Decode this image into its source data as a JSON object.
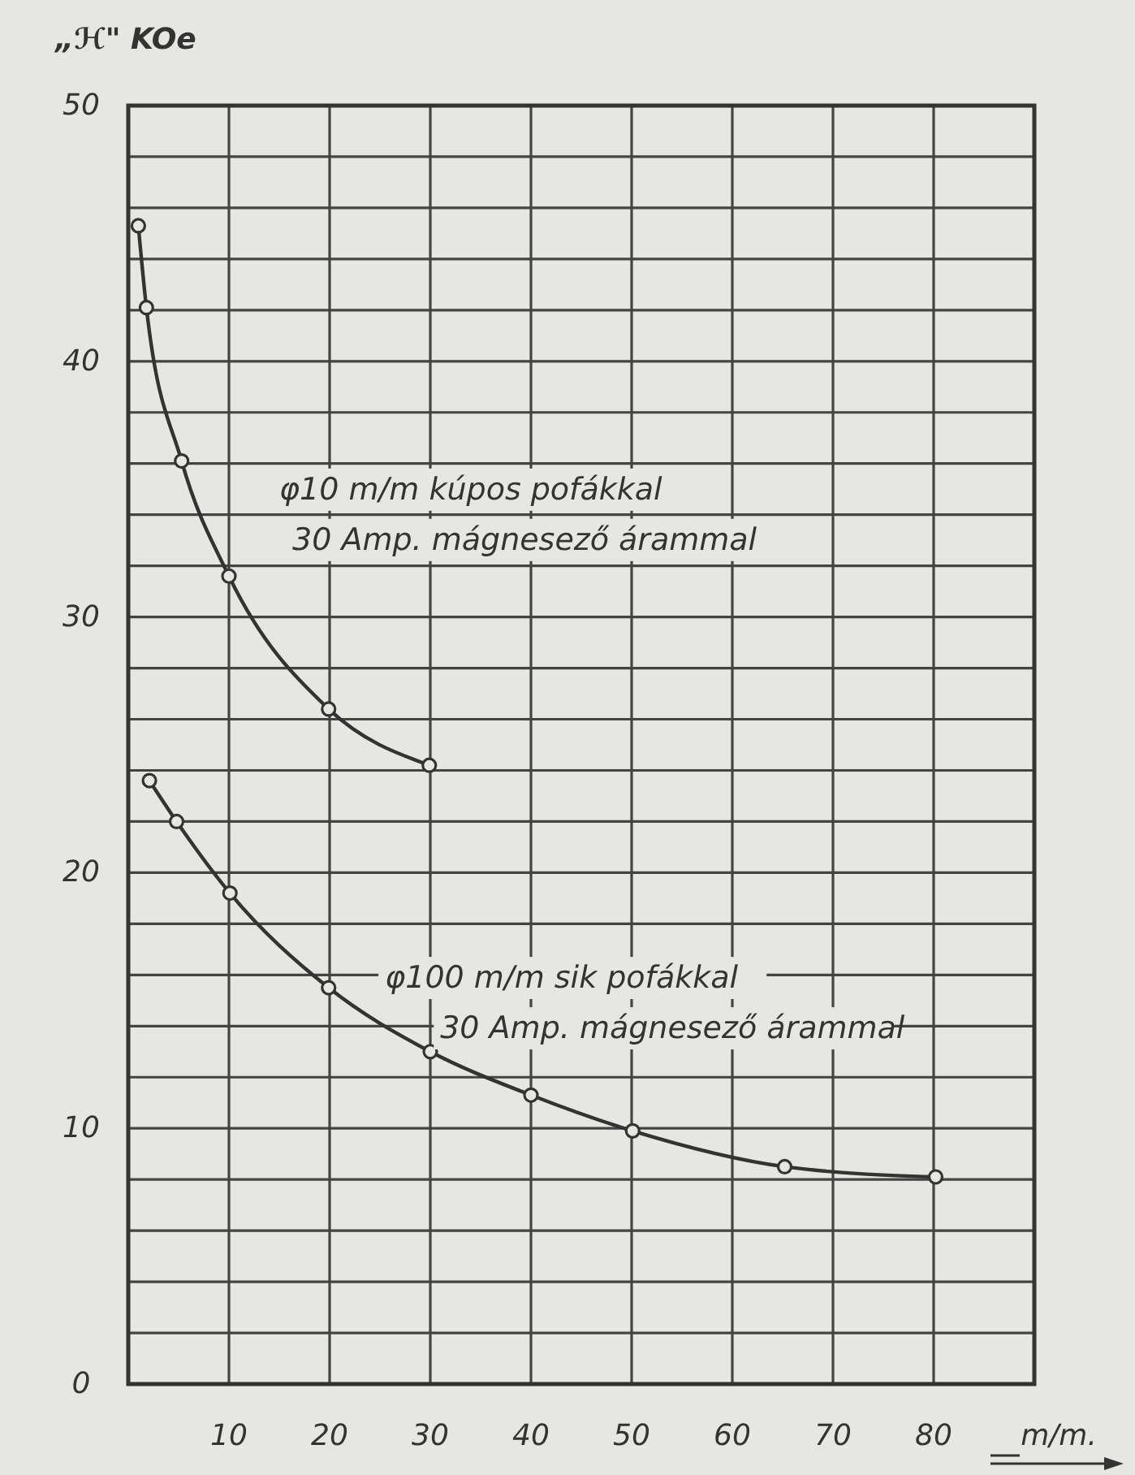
{
  "chart_data": {
    "type": "line",
    "ylabel": "„ℋ\" KOe",
    "xlabel": "m/m.",
    "xlim": [
      0,
      90
    ],
    "ylim": [
      0,
      50
    ],
    "xticks": [
      {
        "value": 0,
        "label": null
      },
      10,
      20,
      30,
      40,
      50,
      60,
      70,
      80,
      {
        "value": 90,
        "label": null
      }
    ],
    "yticks": [
      0,
      {
        "value": 2,
        "label": null
      },
      {
        "value": 4,
        "label": null
      },
      {
        "value": 6,
        "label": null
      },
      {
        "value": 8,
        "label": null
      },
      10,
      {
        "value": 12,
        "label": null
      },
      {
        "value": 14,
        "label": null
      },
      {
        "value": 16,
        "label": null
      },
      {
        "value": 18,
        "label": null
      },
      20,
      {
        "value": 22,
        "label": null
      },
      {
        "value": 24,
        "label": null
      },
      {
        "value": 26,
        "label": null
      },
      {
        "value": 28,
        "label": null
      },
      30,
      {
        "value": 32,
        "label": null
      },
      {
        "value": 34,
        "label": null
      },
      {
        "value": 36,
        "label": null
      },
      {
        "value": 38,
        "label": null
      },
      40,
      {
        "value": 42,
        "label": null
      },
      {
        "value": 44,
        "label": null
      },
      {
        "value": 46,
        "label": null
      },
      {
        "value": 48,
        "label": null
      },
      50
    ],
    "grid": true,
    "marker": "circle",
    "series": [
      {
        "name": "φ10 m/m kúpos pofákkal\n30 Amp. mágnesező árammal",
        "color": "#333333",
        "x": [
          1.0,
          1.8,
          5.3,
          10,
          19.9,
          29.9
        ],
        "values": [
          45.3,
          42.1,
          36.1,
          31.6,
          26.4,
          24.2
        ]
      },
      {
        "name": "φ100 m/m sik pofákkal\n30 Amp. mágnesező árammal",
        "color": "#333333",
        "x": [
          2.1,
          4.8,
          10.1,
          19.9,
          30,
          40,
          50.1,
          65.2,
          80.2
        ],
        "values": [
          23.6,
          22.0,
          19.2,
          15.5,
          13.0,
          11.3,
          9.9,
          8.5,
          8.1
        ]
      }
    ]
  }
}
